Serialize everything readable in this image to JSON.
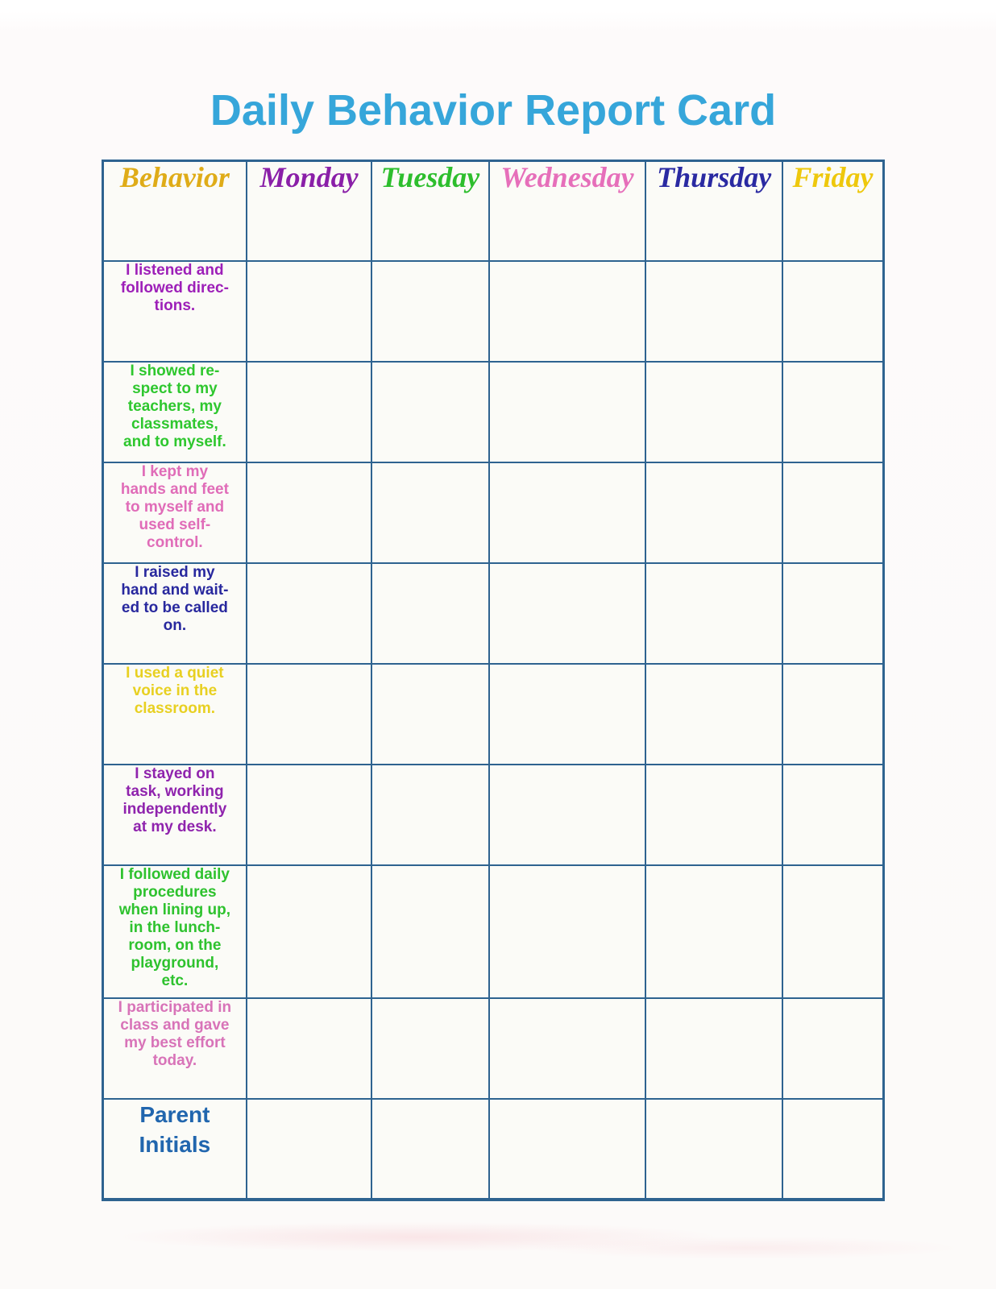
{
  "title": {
    "text": "Daily Behavior Report Card",
    "color": "#36a6da"
  },
  "table": {
    "border_color": "#2e6390",
    "cell_bg": "#fbfbf7",
    "columns": [
      {
        "label": "Behavior",
        "color": "#dfac18"
      },
      {
        "label": "Monday",
        "color": "#8a1fa8"
      },
      {
        "label": "Tuesday",
        "color": "#2dbe2d"
      },
      {
        "label": "Wednesday",
        "color": "#e66fba"
      },
      {
        "label": "Thursday",
        "color": "#2a2aa2"
      },
      {
        "label": "Friday",
        "color": "#eec80c"
      }
    ],
    "rows": [
      {
        "kind": "behavior",
        "text": "I listened and\nfollowed direc-\ntions.",
        "color": "#9d1fb8"
      },
      {
        "kind": "behavior",
        "text": "I showed re-\nspect to my\nteachers, my\nclassmates,\nand to myself.",
        "color": "#2ec72e"
      },
      {
        "kind": "behavior",
        "text": "I kept my\nhands and feet\nto myself and\nused self-\ncontrol.",
        "color": "#e06cb8"
      },
      {
        "kind": "behavior",
        "text": "I raised my\nhand and wait-\ned to be called\non.",
        "color": "#28289e"
      },
      {
        "kind": "behavior",
        "text": "I used a quiet\nvoice in the\nclassroom.",
        "color": "#e8d021"
      },
      {
        "kind": "behavior",
        "text": "I stayed on\ntask, working\nindependently\nat my desk.",
        "color": "#8f23ad"
      },
      {
        "kind": "behavior",
        "text": "I followed daily\nprocedures\nwhen lining up,\nin the lunch-\nroom, on the\nplayground,\netc.",
        "color": "#2ec22e"
      },
      {
        "kind": "behavior",
        "text": "I participated in\nclass and gave\nmy best effort\ntoday.",
        "color": "#d873b8"
      },
      {
        "kind": "parent-initials",
        "text": "Parent\nInitials",
        "color": "#2166ae"
      }
    ]
  }
}
